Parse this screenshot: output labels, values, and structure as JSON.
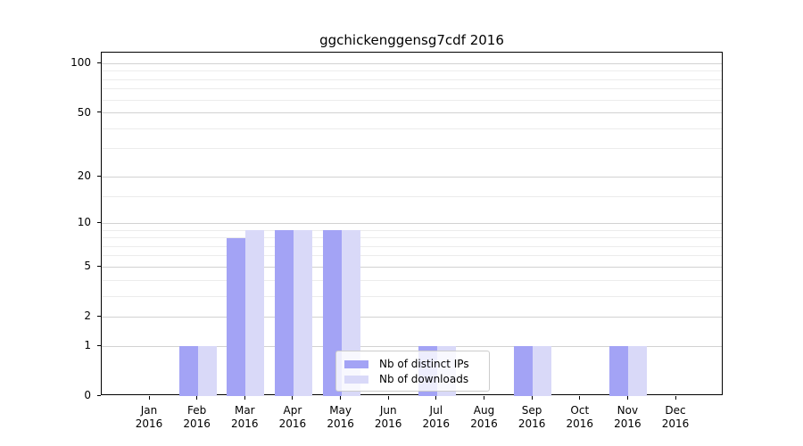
{
  "title": "ggchickenggensg7cdf 2016",
  "chart_data": {
    "type": "bar",
    "title": "ggchickenggensg7cdf 2016",
    "categories": [
      "Jan 2016",
      "Feb 2016",
      "Mar 2016",
      "Apr 2016",
      "May 2016",
      "Jun 2016",
      "Jul 2016",
      "Aug 2016",
      "Sep 2016",
      "Oct 2016",
      "Nov 2016",
      "Dec 2016"
    ],
    "x_axis": {
      "months": [
        "Jan",
        "Feb",
        "Mar",
        "Apr",
        "May",
        "Jun",
        "Jul",
        "Aug",
        "Sep",
        "Oct",
        "Nov",
        "Dec"
      ],
      "year": "2016"
    },
    "series": [
      {
        "name": "Nb of distinct IPs",
        "color": "#a3a3f5",
        "values": [
          0,
          1,
          8,
          9,
          9,
          0,
          1,
          0,
          1,
          0,
          1,
          0
        ]
      },
      {
        "name": "Nb of downloads",
        "color": "#d9d9f8",
        "values": [
          0,
          1,
          9,
          9,
          9,
          0,
          1,
          0,
          1,
          0,
          1,
          0
        ]
      }
    ],
    "y_scale": "log10(1+value)",
    "y_ticks": [
      100,
      50,
      20,
      10,
      5,
      2,
      1,
      0
    ],
    "y_minor_gridlines": [
      3,
      4,
      6,
      7,
      8,
      9,
      15,
      30,
      40,
      60,
      70,
      80,
      90
    ],
    "ylim": [
      0,
      117
    ],
    "grid": "horizontal",
    "legend_position": "lower center"
  },
  "legend": {
    "items": [
      {
        "label": "Nb of distinct IPs",
        "color": "#a3a3f5"
      },
      {
        "label": "Nb of downloads",
        "color": "#d9d9f8"
      }
    ]
  },
  "colors": {
    "background": "#ffffff",
    "axis": "#000000",
    "grid_major": "#d2d2d2",
    "grid_minor": "#ececec",
    "bar_distinct_ips": "#a3a3f5",
    "bar_downloads": "#d9d9f8"
  }
}
